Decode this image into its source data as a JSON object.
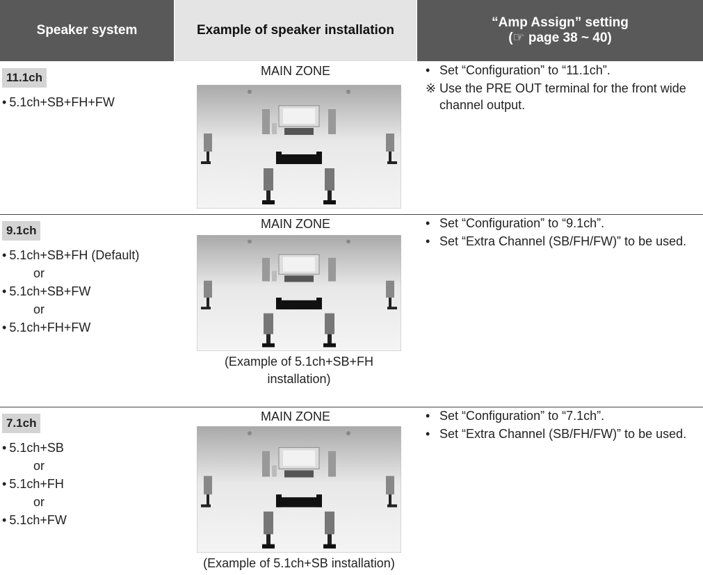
{
  "header": {
    "col1": "Speaker system",
    "col2": "Example of speaker installation",
    "col3_line1": "“Amp Assign” setting",
    "col3_line2": "(☞ page 38 ~ 40)"
  },
  "rows": [
    {
      "label": "11.1ch",
      "options": [
        "5.1ch+SB+FH+FW"
      ],
      "zone": "MAIN ZONE",
      "notes": [
        {
          "marker": "•",
          "text": "Set “Configuration” to “11.1ch”."
        },
        {
          "marker": "※",
          "text": "Use the PRE OUT terminal for the front wide channel output."
        }
      ]
    },
    {
      "label": "9.1ch",
      "options": [
        "5.1ch+SB+FH  (Default)",
        "5.1ch+SB+FW",
        "5.1ch+FH+FW"
      ],
      "separator": "or",
      "zone": "MAIN ZONE",
      "caption": "(Example of 5.1ch+SB+FH installation)",
      "notes": [
        {
          "marker": "•",
          "text": "Set “Configuration” to “9.1ch”."
        },
        {
          "marker": "•",
          "text": "Set “Extra Channel (SB/FH/FW)” to be used."
        }
      ]
    },
    {
      "label": "7.1ch",
      "options": [
        "5.1ch+SB",
        "5.1ch+FH",
        "5.1ch+FW"
      ],
      "separator": "or",
      "zone": "MAIN ZONE",
      "caption": "(Example of 5.1ch+SB installation)",
      "notes": [
        {
          "marker": "•",
          "text": "Set “Configuration” to “7.1ch”."
        },
        {
          "marker": "•",
          "text": "Set “Extra Channel (SB/FH/FW)” to be used."
        }
      ]
    }
  ]
}
